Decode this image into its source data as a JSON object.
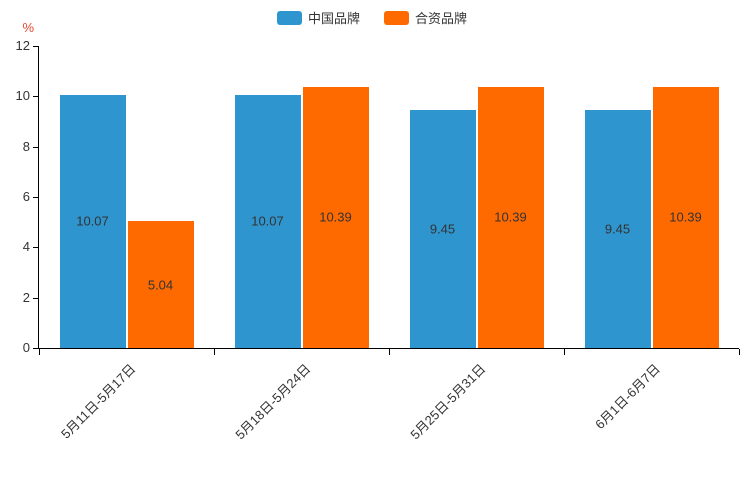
{
  "chart_data": {
    "type": "bar",
    "title": "",
    "xlabel": "",
    "ylabel": "%",
    "categories": [
      "5月11日-5月17日",
      "5月18日-5月24日",
      "5月25日-5月31日",
      "6月1日-6月7日"
    ],
    "series": [
      {
        "name": "中国品牌",
        "color": "#2F95CE",
        "values": [
          10.07,
          10.07,
          9.45,
          9.45
        ]
      },
      {
        "name": "合资品牌",
        "color": "#FF6A00",
        "values": [
          5.04,
          10.39,
          10.39,
          10.39
        ]
      }
    ],
    "ylim": [
      0,
      12
    ],
    "yticks": [
      0,
      2,
      4,
      6,
      8,
      10,
      12
    ],
    "grid": false,
    "legend_position": "top",
    "value_label_color": "#333333",
    "ylabel_color": "#E5462F",
    "axis_color": "#000000"
  }
}
